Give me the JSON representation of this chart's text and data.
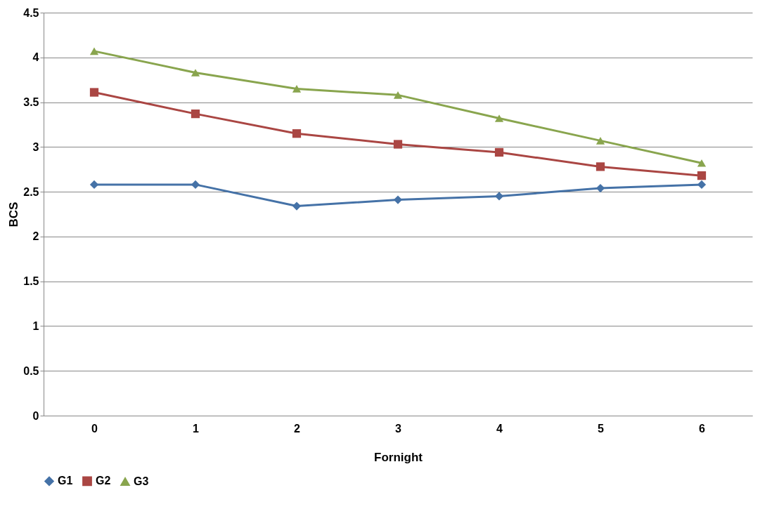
{
  "chart_data": {
    "type": "line",
    "xlabel": "Fornight",
    "ylabel": "BCS",
    "categories": [
      "0",
      "1",
      "2",
      "3",
      "4",
      "5",
      "6"
    ],
    "series": [
      {
        "name": "G1",
        "color": "#4572a7",
        "marker": "diamond",
        "values": [
          2.58,
          2.58,
          2.34,
          2.41,
          2.45,
          2.54,
          2.58
        ]
      },
      {
        "name": "G2",
        "color": "#aa4643",
        "marker": "square",
        "values": [
          3.61,
          3.37,
          3.15,
          3.03,
          2.94,
          2.78,
          2.68
        ]
      },
      {
        "name": "G3",
        "color": "#89a54e",
        "marker": "triangle",
        "values": [
          4.07,
          3.83,
          3.65,
          3.58,
          3.32,
          3.07,
          2.82
        ]
      }
    ],
    "ylim": [
      0,
      4.5
    ],
    "yticks": [
      0,
      0.5,
      1,
      1.5,
      2,
      2.5,
      3,
      3.5,
      4,
      4.5
    ],
    "grid": "y",
    "legend": "bottom"
  }
}
